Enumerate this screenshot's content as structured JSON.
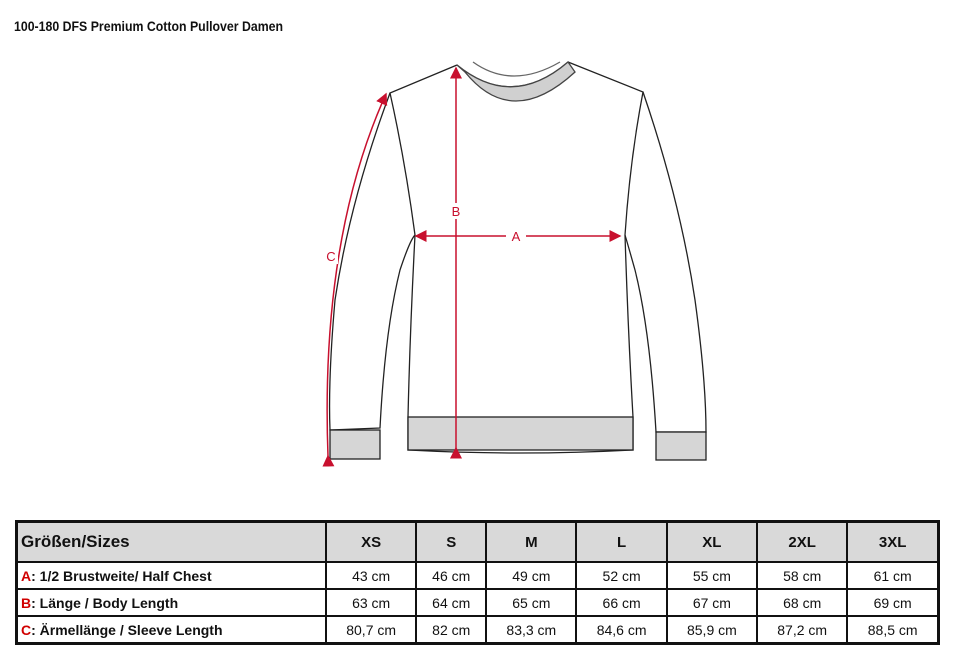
{
  "title": "100-180 DFS Premium Cotton Pullover Damen",
  "diagram": {
    "labels": {
      "a": "A",
      "b": "B",
      "c": "C"
    },
    "arrow_color": "#c8102e"
  },
  "table": {
    "header_label": "Größen/Sizes",
    "sizes": [
      "XS",
      "S",
      "M",
      "L",
      "XL",
      "2XL",
      "3XL"
    ],
    "rows": [
      {
        "key": "A",
        "label": ": 1/2 Brustweite/ Half Chest",
        "values": [
          "43 cm",
          "46 cm",
          "49 cm",
          "52 cm",
          "55 cm",
          "58 cm",
          "61 cm"
        ]
      },
      {
        "key": "B",
        "label": ": Länge / Body Length",
        "values": [
          "63 cm",
          "64 cm",
          "65 cm",
          "66 cm",
          "67 cm",
          "68 cm",
          "69 cm"
        ]
      },
      {
        "key": "C",
        "label": ": Ärmellänge / Sleeve Length",
        "values": [
          "80,7 cm",
          "82 cm",
          "83,3 cm",
          "84,6 cm",
          "85,9 cm",
          "87,2 cm",
          "88,5 cm"
        ]
      }
    ]
  }
}
